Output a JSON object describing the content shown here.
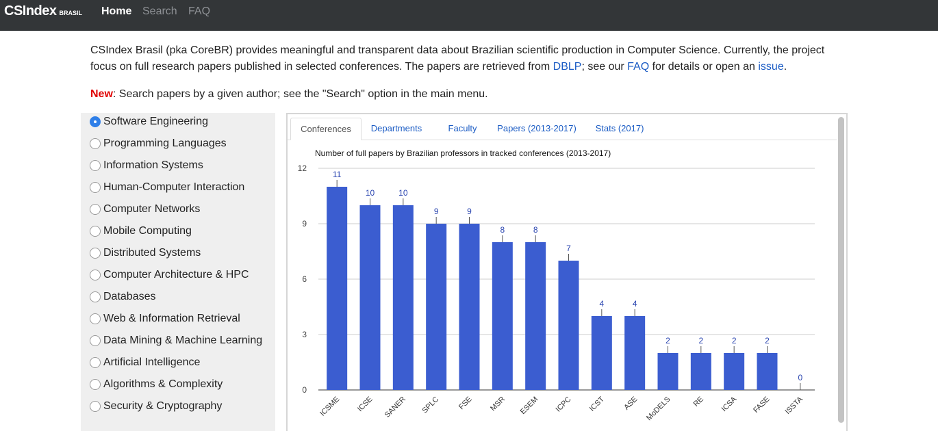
{
  "navbar": {
    "brand": "CSIndex",
    "brand_sub": "BRASIL",
    "links": {
      "home": "Home",
      "search": "Search",
      "faq": "FAQ"
    }
  },
  "intro": {
    "text1": "CSIndex Brasil (pka CoreBR) provides meaningful and transparent data about Brazilian scientific production in Computer Science. Currently, the project focus on full research papers published in selected conferences. The papers are retrieved from ",
    "link_dblp": "DBLP",
    "text2": "; see our ",
    "link_faq": "FAQ",
    "text3": " for details or open an ",
    "link_issue": "issue",
    "text4": "."
  },
  "news": {
    "label": "New",
    "text": ": Search papers by a given author; see the \"Search\" option in the main menu."
  },
  "sidebar": {
    "selected": "Software Engineering",
    "areas": [
      "Software Engineering",
      "Programming Languages",
      "Information Systems",
      "Human-Computer Interaction",
      "Computer Networks",
      "Mobile Computing",
      "Distributed Systems",
      "Computer Architecture & HPC",
      "Databases",
      "Web & Information Retrieval",
      "Data Mining & Machine Learning",
      "Artificial Intelligence",
      "Algorithms & Complexity",
      "Security & Cryptography"
    ]
  },
  "tabs": [
    "Conferences",
    "Departments",
    "Faculty",
    "Papers (2013-2017)",
    "Stats (2017)"
  ],
  "active_tab": "Conferences",
  "chart_data": {
    "type": "bar",
    "title": "Number of full papers by Brazilian professors in tracked conferences (2013-2017)",
    "categories": [
      "ICSME",
      "ICSE",
      "SANER",
      "SPLC",
      "FSE",
      "MSR",
      "ESEM",
      "ICPC",
      "ICST",
      "ASE",
      "MoDELS",
      "RE",
      "ICSA",
      "FASE",
      "ISSTA"
    ],
    "values": [
      11,
      10,
      10,
      9,
      9,
      8,
      8,
      7,
      4,
      4,
      2,
      2,
      2,
      2,
      0
    ],
    "ylim": [
      0,
      12
    ],
    "yticks": [
      0,
      3,
      6,
      9,
      12
    ],
    "grid": true,
    "bar_color": "#3b5dd0",
    "label_color": "#2a45b0"
  }
}
